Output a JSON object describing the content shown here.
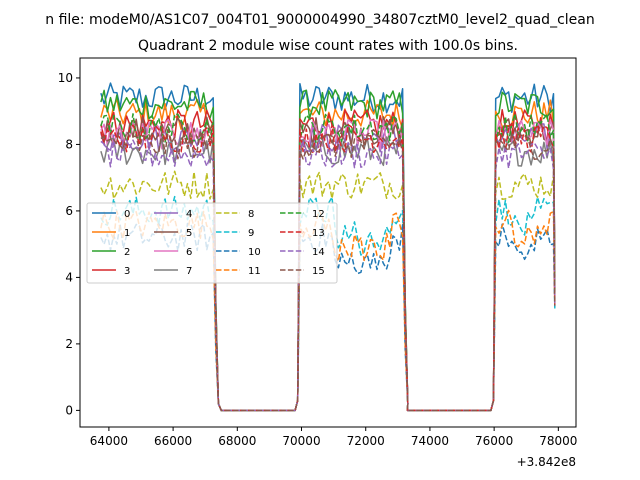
{
  "figure": {
    "suptitle": "n file: modeM0/AS1C07_004T01_9000004990_34807cztM0_level2_quad_clean",
    "offset_label": "+3.842e8"
  },
  "chart_data": {
    "type": "line",
    "title": "Quadrant 2 module wise count rates with 100.0s bins.",
    "xlabel": "",
    "ylabel": "",
    "x_offset": 384200000,
    "xlim": [
      63100,
      78550
    ],
    "ylim": [
      -0.5,
      10.6
    ],
    "xticks": [
      64000,
      66000,
      68000,
      70000,
      72000,
      74000,
      76000,
      78000
    ],
    "xtick_labels": [
      "64000",
      "66000",
      "68000",
      "70000",
      "72000",
      "74000",
      "76000",
      "78000"
    ],
    "yticks": [
      0,
      2,
      4,
      6,
      8,
      10
    ],
    "ytick_labels": [
      "0",
      "2",
      "4",
      "6",
      "8",
      "10"
    ],
    "grid": false,
    "legend_location": "center-left",
    "segments": [
      {
        "x_start": 63750,
        "x_end": 67250
      },
      {
        "x_start": 69950,
        "x_end": 73150
      },
      {
        "x_start": 76050,
        "x_end": 77850
      }
    ],
    "zero_gaps": [
      {
        "x_start": 67500,
        "x_end": 69800
      },
      {
        "x_start": 73300,
        "x_end": 75900
      }
    ],
    "series": [
      {
        "name": "0",
        "color": "#1f77b4",
        "dash": "solid",
        "level": 9.4
      },
      {
        "name": "1",
        "color": "#ff7f0e",
        "dash": "solid",
        "level": 8.9
      },
      {
        "name": "2",
        "color": "#2ca02c",
        "dash": "solid",
        "level": 9.2
      },
      {
        "name": "3",
        "color": "#d62728",
        "dash": "solid",
        "level": 8.6
      },
      {
        "name": "4",
        "color": "#9467bd",
        "dash": "solid",
        "level": 8.2
      },
      {
        "name": "5",
        "color": "#8c564b",
        "dash": "solid",
        "level": 8.4
      },
      {
        "name": "6",
        "color": "#e377c2",
        "dash": "solid",
        "level": 8.3
      },
      {
        "name": "7",
        "color": "#7f7f7f",
        "dash": "solid",
        "level": 7.8
      },
      {
        "name": "8",
        "color": "#bcbd22",
        "dash": "dashed",
        "level": 6.8
      },
      {
        "name": "9",
        "color": "#17becf",
        "dash": "dashed",
        "level": 6.0
      },
      {
        "name": "10",
        "color": "#1f77b4",
        "dash": "dashed",
        "level": 5.2
      },
      {
        "name": "11",
        "color": "#ff7f0e",
        "dash": "dashed",
        "level": 5.6
      },
      {
        "name": "12",
        "color": "#2ca02c",
        "dash": "dashed",
        "level": 8.5
      },
      {
        "name": "13",
        "color": "#d62728",
        "dash": "dashed",
        "level": 8.2
      },
      {
        "name": "14",
        "color": "#9467bd",
        "dash": "dashed",
        "level": 7.7
      },
      {
        "name": "15",
        "color": "#8c564b",
        "dash": "dashed",
        "level": 8.0
      }
    ]
  }
}
